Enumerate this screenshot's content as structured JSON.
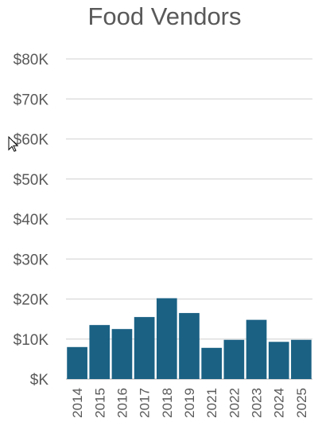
{
  "chart_data": {
    "type": "bar",
    "title": "Food Vendors",
    "xlabel": "",
    "ylabel": "",
    "categories": [
      "2014",
      "2015",
      "2016",
      "2017",
      "2018",
      "2019",
      "2021",
      "2022",
      "2023",
      "2024",
      "2025"
    ],
    "values": [
      8000,
      13500,
      12500,
      15500,
      20200,
      16500,
      7800,
      9800,
      14800,
      9300,
      9800
    ],
    "ylim": [
      0,
      80000
    ],
    "yticks": [
      0,
      10000,
      20000,
      30000,
      40000,
      50000,
      60000,
      70000,
      80000
    ],
    "ytick_labels": [
      "$K",
      "$10K",
      "$20K",
      "$30K",
      "$40K",
      "$50K",
      "$60K",
      "$70K",
      "$80K"
    ],
    "bar_color": "#1a6184",
    "grid": true,
    "legend": "none"
  },
  "cursor_icon": "arrow-pointer-icon"
}
